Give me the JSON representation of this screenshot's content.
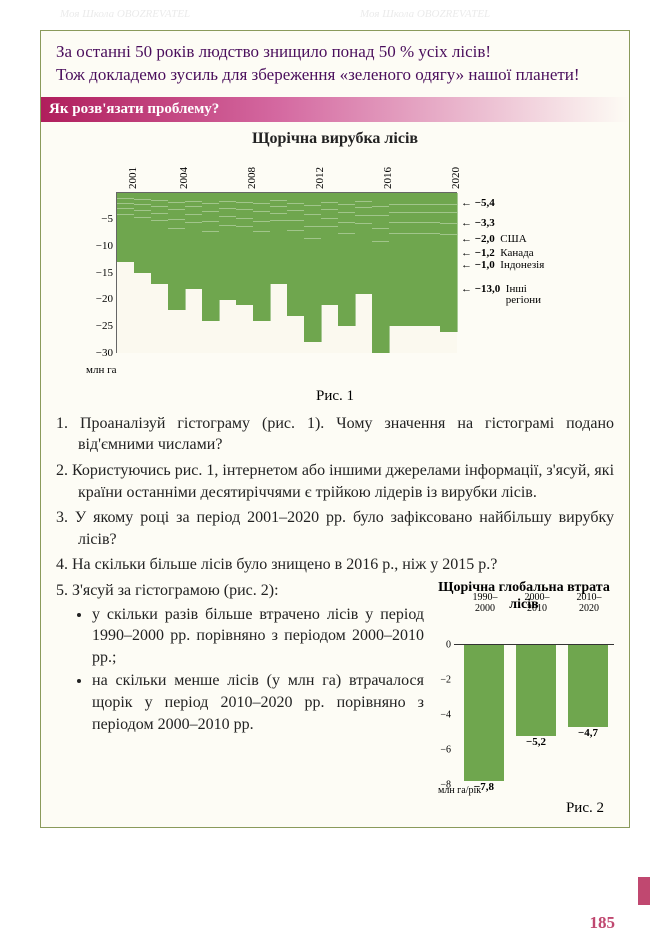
{
  "watermarks": [
    "Моя Школа",
    "OBOZREVATEL"
  ],
  "intro": {
    "line1": "За останні 50 років людство знищило понад 50 % усіх лісів!",
    "line2": "Тож докладемо зусиль для збереження «зеленого одягу» нашої планети!"
  },
  "section_header": "Як розв'язати проблему?",
  "chart1": {
    "title": "Щорічна вирубка лісів",
    "ylabel": "млн га",
    "ymin": -30,
    "ymax": 0,
    "ytick_step": -5,
    "yticks": [
      "−5",
      "−10",
      "−15",
      "−20",
      "−25",
      "−30"
    ],
    "xlabels": [
      "2001",
      "2004",
      "2008",
      "2012",
      "2016",
      "2020"
    ],
    "bars": [
      -13,
      -15,
      -17,
      -22,
      -18,
      -24,
      -20,
      -21,
      -24,
      -17,
      -23,
      -28,
      -21,
      -25,
      -19,
      -30,
      -25,
      -25,
      -25,
      -26
    ],
    "bar_color": "#6fa64e",
    "legend": [
      {
        "label": "−5,4",
        "name": ""
      },
      {
        "label": "−3,3",
        "name": ""
      },
      {
        "label": "−2,0",
        "name": "США"
      },
      {
        "label": "−1,2",
        "name": "Канада"
      },
      {
        "label": "−1,0",
        "name": "Індонезія"
      },
      {
        "label": "−13,0",
        "name": "Інші регіони"
      }
    ],
    "caption": "Рис. 1"
  },
  "questions": [
    "Проаналізуй гістограму (рис. 1). Чому значення на гістограмі подано від'ємними числами?",
    "Користуючись рис. 1, інтернетом або іншими джерелами інформації, з'ясуй, які країни останніми десятиріччями є трійкою лідерів із вирубки лісів.",
    "У якому році за період 2001–2020 рр. було зафіксовано найбільшу вирубку лісів?",
    "На скільки більше лісів було знищено в 2016 р., ніж у 2015 р.?"
  ],
  "q5": {
    "lead": "З'ясуй за гістограмою (рис. 2):",
    "b1": "у скільки разів більше втрачено лісів у період 1990–2000 рр. порівняно з періодом 2000–2010 рр.;",
    "b2": "на скільки менше лісів (у млн га) втрачалося щорік у період 2010–2020 рр. порівняно з періодом 2000–2010 рр."
  },
  "chart2": {
    "title": "Щорічна глобальна втрата лісів",
    "xlabels": [
      "1990–\n2000",
      "2000–\n2010",
      "2010–\n2020"
    ],
    "values": [
      -7.8,
      -5.2,
      -4.7
    ],
    "labels": [
      "−7,8",
      "−5,2",
      "−4,7"
    ],
    "ymin": -8,
    "ymax": 0,
    "yticks": [
      "0",
      "−2",
      "−4",
      "−6",
      "−8"
    ],
    "ylabel": "млн га/рік",
    "bar_color": "#6fa64e",
    "caption": "Рис. 2"
  },
  "page_number": "185"
}
